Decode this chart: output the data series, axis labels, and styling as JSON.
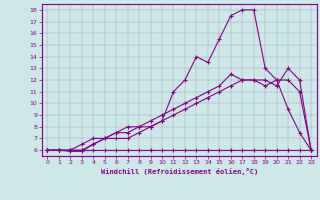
{
  "xlabel": "Windchill (Refroidissement éolien,°C)",
  "background_color": "#cce8e8",
  "line_color": "#880088",
  "xlim": [
    -0.5,
    23.5
  ],
  "ylim": [
    5.5,
    18.5
  ],
  "xticks": [
    0,
    1,
    2,
    3,
    4,
    5,
    6,
    7,
    8,
    9,
    10,
    11,
    12,
    13,
    14,
    15,
    16,
    17,
    18,
    19,
    20,
    21,
    22,
    23
  ],
  "yticks": [
    6,
    7,
    8,
    9,
    10,
    11,
    12,
    13,
    14,
    15,
    16,
    17,
    18
  ],
  "line1_x": [
    0,
    1,
    2,
    3,
    4,
    5,
    6,
    7,
    8,
    9,
    10,
    11,
    12,
    13,
    14,
    15,
    16,
    17,
    18,
    19,
    20,
    21,
    22,
    23
  ],
  "line1_y": [
    6,
    6,
    6,
    6,
    6,
    6,
    6,
    6,
    6,
    6,
    6,
    6,
    6,
    6,
    6,
    6,
    6,
    6,
    6,
    6,
    6,
    6,
    6,
    6
  ],
  "line2_x": [
    0,
    1,
    2,
    3,
    4,
    5,
    6,
    7,
    8,
    9,
    10,
    11,
    12,
    13,
    14,
    15,
    16,
    17,
    18,
    19,
    20,
    21,
    22,
    23
  ],
  "line2_y": [
    6,
    6,
    5.9,
    5.9,
    6.5,
    7,
    7.5,
    7.5,
    8,
    8,
    8.5,
    11,
    12,
    14,
    13.5,
    15.5,
    17.5,
    18,
    18,
    13,
    12,
    9.5,
    7.5,
    6
  ],
  "line3_x": [
    0,
    1,
    2,
    3,
    4,
    5,
    6,
    7,
    8,
    9,
    10,
    11,
    12,
    13,
    14,
    15,
    16,
    17,
    18,
    19,
    20,
    21,
    22,
    23
  ],
  "line3_y": [
    6,
    6,
    6,
    6.5,
    7,
    7,
    7.5,
    8,
    8,
    8.5,
    9,
    9.5,
    10,
    10.5,
    11,
    11.5,
    12.5,
    12,
    12,
    12,
    11.5,
    13,
    12,
    6
  ],
  "line4_x": [
    0,
    1,
    2,
    3,
    4,
    5,
    6,
    7,
    8,
    9,
    10,
    11,
    12,
    13,
    14,
    15,
    16,
    17,
    18,
    19,
    20,
    21,
    22,
    23
  ],
  "line4_y": [
    6,
    6,
    6,
    6,
    6.5,
    7,
    7,
    7,
    7.5,
    8,
    8.5,
    9,
    9.5,
    10,
    10.5,
    11,
    11.5,
    12,
    12,
    11.5,
    12,
    12,
    11,
    6
  ]
}
